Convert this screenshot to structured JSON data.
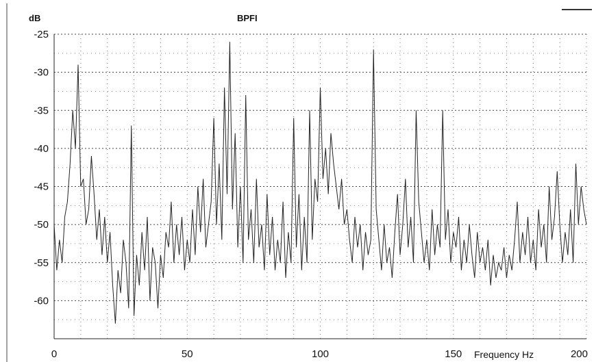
{
  "chart_data": {
    "type": "line",
    "title": "BPFI",
    "ylabel": "dB",
    "xlabel": "Frequency Hz",
    "xlim": [
      0,
      200
    ],
    "ylim": [
      -65,
      -25
    ],
    "x_ticks": [
      0,
      50,
      100,
      150,
      200
    ],
    "x_tick_labels": [
      "0",
      "50",
      "100",
      "150",
      "200"
    ],
    "y_ticks": [
      -25,
      -30,
      -35,
      -40,
      -45,
      -50,
      -55,
      -60
    ],
    "y_tick_labels": [
      "-25",
      "-30",
      "-35",
      "-40",
      "-45",
      "-50",
      "-55",
      "-60"
    ],
    "grid": true,
    "line_color": "#222222",
    "series": [
      {
        "name": "",
        "x": [
          0,
          1,
          2,
          3,
          4,
          5,
          6,
          7,
          8,
          9,
          10,
          11,
          12,
          13,
          14,
          15,
          16,
          17,
          18,
          19,
          20,
          21,
          22,
          23,
          24,
          25,
          26,
          27,
          28,
          29,
          30,
          31,
          32,
          33,
          34,
          35,
          36,
          37,
          38,
          39,
          40,
          41,
          42,
          43,
          44,
          45,
          46,
          47,
          48,
          49,
          50,
          51,
          52,
          53,
          54,
          55,
          56,
          57,
          58,
          59,
          60,
          61,
          62,
          63,
          64,
          65,
          66,
          67,
          68,
          69,
          70,
          71,
          72,
          73,
          74,
          75,
          76,
          77,
          78,
          79,
          80,
          81,
          82,
          83,
          84,
          85,
          86,
          87,
          88,
          89,
          90,
          91,
          92,
          93,
          94,
          95,
          96,
          97,
          98,
          99,
          100,
          101,
          102,
          103,
          104,
          105,
          106,
          107,
          108,
          109,
          110,
          111,
          112,
          113,
          114,
          115,
          116,
          117,
          118,
          119,
          120,
          121,
          122,
          123,
          124,
          125,
          126,
          127,
          128,
          129,
          130,
          131,
          132,
          133,
          134,
          135,
          136,
          137,
          138,
          139,
          140,
          141,
          142,
          143,
          144,
          145,
          146,
          147,
          148,
          149,
          150,
          151,
          152,
          153,
          154,
          155,
          156,
          157,
          158,
          159,
          160,
          161,
          162,
          163,
          164,
          165,
          166,
          167,
          168,
          169,
          170,
          171,
          172,
          173,
          174,
          175,
          176,
          177,
          178,
          179,
          180,
          181,
          182,
          183,
          184,
          185,
          186,
          187,
          188,
          189,
          190,
          191,
          192,
          193,
          194,
          195,
          196,
          197,
          198,
          199,
          200
        ],
        "y": [
          -50,
          -56,
          -52,
          -55,
          -49,
          -47,
          -42,
          -35,
          -40,
          -29,
          -45,
          -44,
          -50,
          -48,
          -41,
          -46,
          -52,
          -48,
          -54,
          -49,
          -55,
          -51,
          -58,
          -63,
          -56,
          -59,
          -52,
          -55,
          -61,
          -37,
          -62,
          -54,
          -58,
          -51,
          -56,
          -49,
          -60,
          -53,
          -55,
          -61,
          -54,
          -57,
          -51,
          -53,
          -47,
          -55,
          -50,
          -54,
          -49,
          -56,
          -52,
          -55,
          -48,
          -54,
          -45,
          -51,
          -44,
          -53,
          -50,
          -47,
          -36,
          -50,
          -42,
          -52,
          -32,
          -46,
          -26,
          -48,
          -38,
          -53,
          -45,
          -55,
          -33,
          -52,
          -48,
          -55,
          -44,
          -53,
          -50,
          -56,
          -46,
          -54,
          -49,
          -56,
          -52,
          -55,
          -47,
          -57,
          -51,
          -55,
          -36,
          -53,
          -46,
          -56,
          -49,
          -55,
          -35,
          -52,
          -44,
          -47,
          -32,
          -44,
          -40,
          -46,
          -38,
          -42,
          -45,
          -48,
          -44,
          -50,
          -48,
          -52,
          -55,
          -49,
          -53,
          -50,
          -56,
          -51,
          -54,
          -52,
          -27,
          -48,
          -52,
          -56,
          -50,
          -55,
          -53,
          -57,
          -51,
          -46,
          -54,
          -50,
          -44,
          -53,
          -49,
          -55,
          -35,
          -47,
          -51,
          -55,
          -52,
          -56,
          -48,
          -54,
          -50,
          -53,
          -35,
          -52,
          -48,
          -55,
          -51,
          -53,
          -49,
          -56,
          -52,
          -55,
          -50,
          -54,
          -57,
          -51,
          -55,
          -53,
          -56,
          -52,
          -58,
          -54,
          -57,
          -55,
          -56,
          -53,
          -57,
          -54,
          -56,
          -52,
          -47,
          -55,
          -51,
          -54,
          -49,
          -55,
          -52,
          -56,
          -48,
          -53,
          -50,
          -55,
          -45,
          -52,
          -49,
          -43,
          -50,
          -55,
          -51,
          -54,
          -48,
          -55,
          -42,
          -50,
          -45,
          -48,
          -50
        ]
      }
    ]
  }
}
